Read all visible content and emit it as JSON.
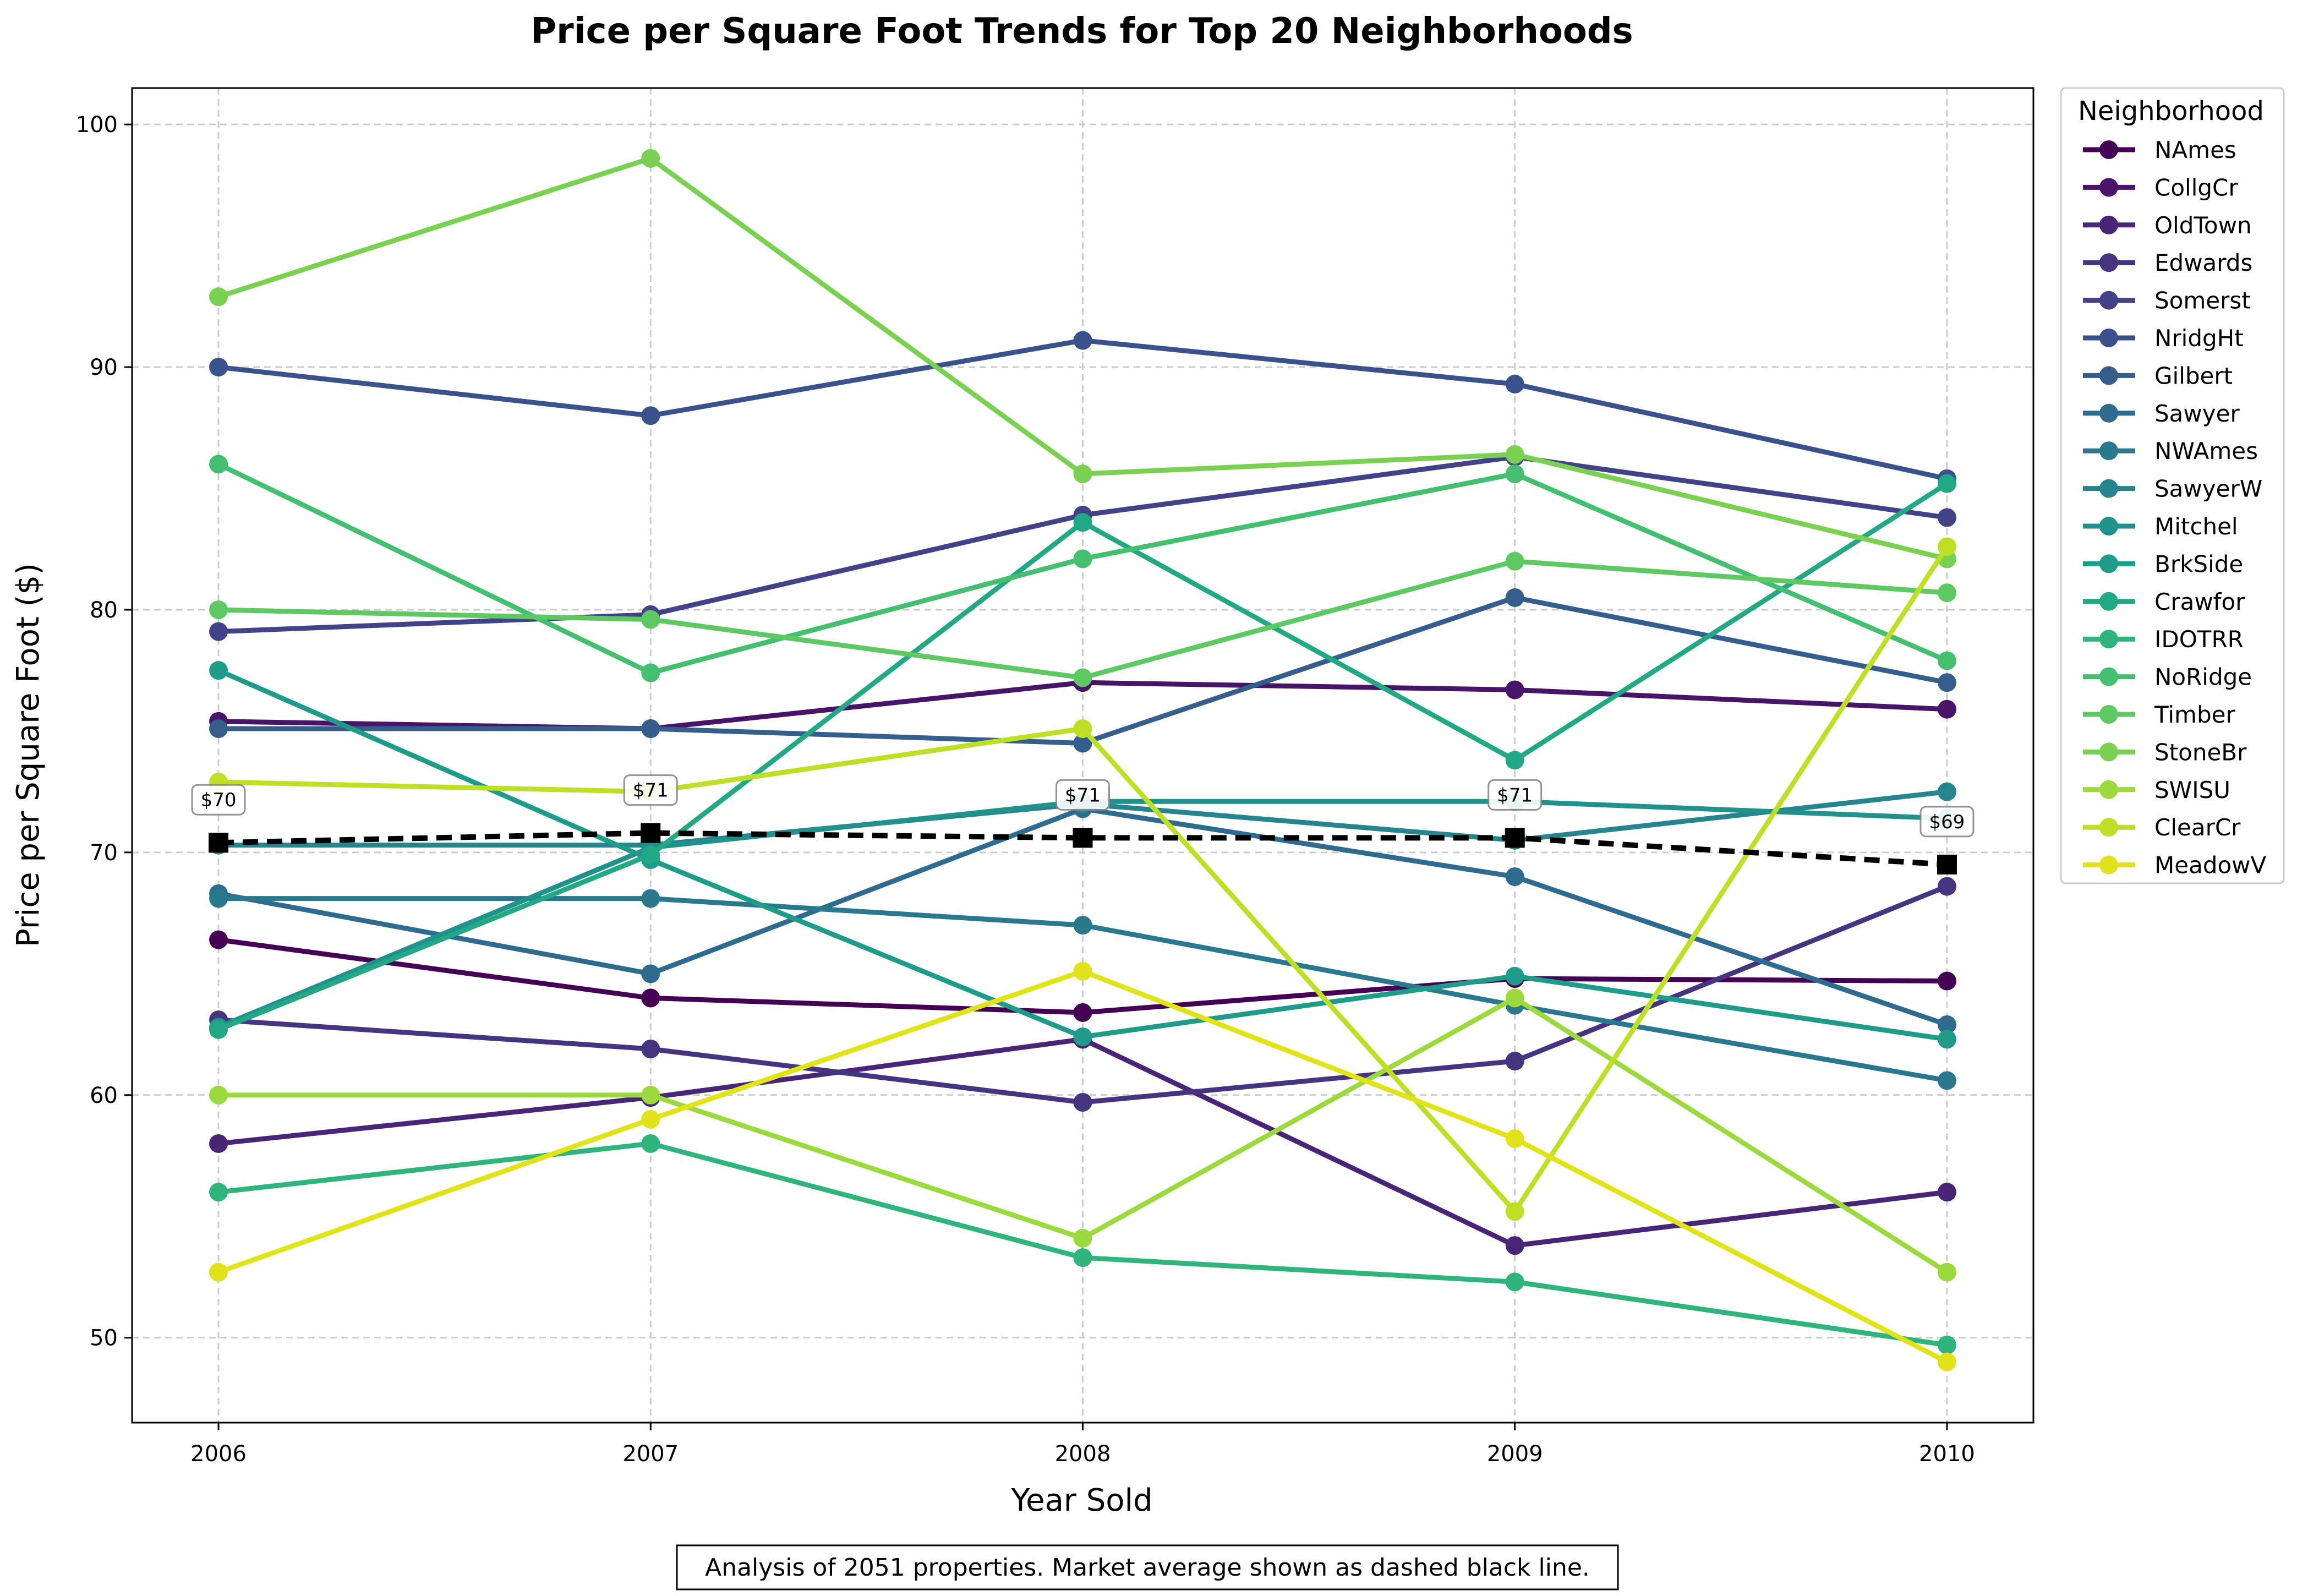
{
  "chart_data": {
    "type": "line",
    "title": "Price per Square Foot Trends for Top 20 Neighborhoods",
    "xlabel": "Year Sold",
    "ylabel": "Price per Square Foot ($)",
    "x": [
      2006,
      2007,
      2008,
      2009,
      2010
    ],
    "x_tick_labels": [
      "2006",
      "2007",
      "2008",
      "2009",
      "2010"
    ],
    "y_ticks": [
      50,
      60,
      70,
      80,
      90,
      100
    ],
    "y_tick_labels": [
      "50",
      "60",
      "70",
      "80",
      "90",
      "100"
    ],
    "xlim": [
      2005.8,
      2010.2
    ],
    "ylim": [
      46.5,
      101.5
    ],
    "grid": true,
    "legend_title": "Neighborhood",
    "legend_position": "outside-right",
    "series": [
      {
        "name": "NAmes",
        "color": "#440154",
        "values": [
          66.4,
          64.0,
          63.4,
          64.8,
          64.7
        ]
      },
      {
        "name": "CollgCr",
        "color": "#481467",
        "values": [
          75.4,
          75.1,
          77.0,
          76.7,
          75.9
        ]
      },
      {
        "name": "OldTown",
        "color": "#482576",
        "values": [
          58.0,
          59.9,
          62.3,
          53.8,
          56.0
        ]
      },
      {
        "name": "Edwards",
        "color": "#463480",
        "values": [
          63.1,
          61.9,
          59.7,
          61.4,
          68.6
        ]
      },
      {
        "name": "Somerst",
        "color": "#414287",
        "values": [
          79.1,
          79.8,
          83.9,
          86.3,
          83.8
        ]
      },
      {
        "name": "NridgHt",
        "color": "#3b518b",
        "values": [
          90.0,
          88.0,
          91.1,
          89.3,
          85.4
        ]
      },
      {
        "name": "Gilbert",
        "color": "#355e8d",
        "values": [
          75.1,
          75.1,
          74.5,
          80.5,
          77.0
        ]
      },
      {
        "name": "Sawyer",
        "color": "#2f6b8e",
        "values": [
          68.3,
          65.0,
          71.8,
          69.0,
          62.9
        ]
      },
      {
        "name": "NWAmes",
        "color": "#2a788e",
        "values": [
          68.1,
          68.1,
          67.0,
          63.7,
          60.6
        ]
      },
      {
        "name": "SawyerW",
        "color": "#25848e",
        "values": [
          70.3,
          70.3,
          72.0,
          70.5,
          72.5
        ]
      },
      {
        "name": "Mitchel",
        "color": "#21918c",
        "values": [
          62.8,
          70.2,
          72.1,
          72.1,
          71.4
        ]
      },
      {
        "name": "BrkSide",
        "color": "#1e9c89",
        "values": [
          77.5,
          69.7,
          62.4,
          64.9,
          62.3
        ]
      },
      {
        "name": "Crawfor",
        "color": "#22a884",
        "values": [
          62.7,
          69.9,
          83.6,
          73.8,
          85.2
        ]
      },
      {
        "name": "IDOTRR",
        "color": "#2fb47c",
        "values": [
          56.0,
          58.0,
          53.3,
          52.3,
          49.7
        ]
      },
      {
        "name": "NoRidge",
        "color": "#44bf70",
        "values": [
          86.0,
          77.4,
          82.1,
          85.6,
          77.9
        ]
      },
      {
        "name": "Timber",
        "color": "#5ec962",
        "values": [
          80.0,
          79.6,
          77.2,
          82.0,
          80.7
        ]
      },
      {
        "name": "StoneBr",
        "color": "#7ad151",
        "values": [
          92.9,
          98.6,
          85.6,
          86.4,
          82.1
        ]
      },
      {
        "name": "SWISU",
        "color": "#9bd93c",
        "values": [
          60.0,
          60.0,
          54.1,
          64.0,
          52.7
        ]
      },
      {
        "name": "ClearCr",
        "color": "#bddf26",
        "values": [
          72.9,
          72.5,
          75.1,
          55.2,
          82.6
        ]
      },
      {
        "name": "MeadowV",
        "color": "#dfe318",
        "values": [
          52.7,
          59.0,
          65.1,
          58.2,
          49.0
        ]
      }
    ],
    "average": {
      "color": "#000000",
      "style": "dashed",
      "values": [
        70.4,
        70.8,
        70.6,
        70.6,
        69.5
      ],
      "labels": [
        "$70",
        "$71",
        "$71",
        "$71",
        "$69"
      ]
    },
    "footnote": "Analysis of 2051 properties. Market average shown as dashed black line."
  }
}
